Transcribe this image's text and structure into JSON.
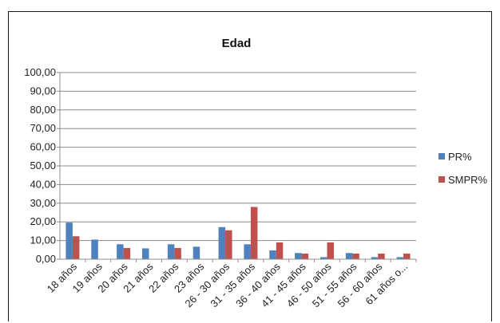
{
  "chart_data": {
    "type": "bar",
    "title": "Edad",
    "xlabel": "",
    "ylabel": "",
    "ylim": [
      0,
      100
    ],
    "yticks": [
      "0,00",
      "10,00",
      "20,00",
      "30,00",
      "40,00",
      "50,00",
      "60,00",
      "70,00",
      "80,00",
      "90,00",
      "100,00"
    ],
    "categories": [
      "18 años",
      "19 años",
      "20 años",
      "21 años",
      "22 años",
      "23 años",
      "26 - 30 años",
      "31 - 35 años",
      "36 - 40 años",
      "41 - 45 años",
      "46 - 50 años",
      "51 - 55 años",
      "56 - 60 años",
      "61 años o..."
    ],
    "series": [
      {
        "name": "PR%",
        "color": "#4f81bd",
        "values": [
          19.6,
          10.5,
          8.0,
          5.8,
          8.0,
          6.7,
          17.2,
          8.0,
          4.7,
          3.3,
          1.1,
          3.3,
          1.1,
          1.1
        ]
      },
      {
        "name": "SMPR%",
        "color": "#c0504d",
        "values": [
          12.3,
          0,
          6.0,
          0,
          6.0,
          0,
          15.5,
          28.0,
          9.0,
          3.0,
          9.0,
          3.0,
          3.0,
          3.0
        ]
      }
    ],
    "grid": true,
    "legend_position": "right"
  }
}
